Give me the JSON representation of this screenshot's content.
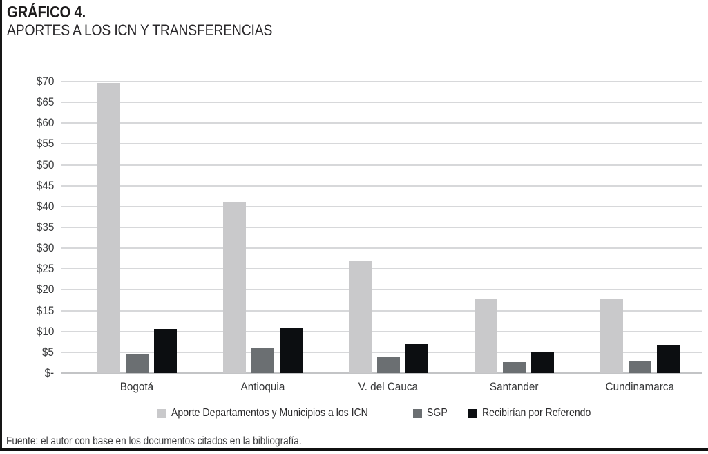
{
  "header": {
    "title": "GRÁFICO 4.",
    "subtitle": "APORTES A LOS ICN Y TRANSFERENCIAS"
  },
  "footer": {
    "text": "Fuente: el autor con base en los documentos citados en la bibliografía."
  },
  "chart_data": {
    "type": "bar",
    "title": "GRÁFICO 4. APORTES A LOS ICN Y TRANSFERENCIAS",
    "categories": [
      "Bogotá",
      "Antioquia",
      "V. del Cauca",
      "Santander",
      "Cundinamarca"
    ],
    "series": [
      {
        "name": "Aporte Departamentos y Municipios a los ICN",
        "color": "#c9c9cb",
        "values": [
          69.7,
          41.0,
          27.0,
          17.9,
          17.8
        ]
      },
      {
        "name": "SGP",
        "color": "#6b6f72",
        "values": [
          4.5,
          6.2,
          3.9,
          2.6,
          2.9
        ]
      },
      {
        "name": "Recibirían por Referendo",
        "color": "#0c0e11",
        "values": [
          10.6,
          10.9,
          7.0,
          5.2,
          6.8
        ]
      }
    ],
    "xlabel": "",
    "ylabel": "",
    "ylim": [
      0,
      70
    ],
    "ytick_step": 5,
    "ytick_labels": [
      "$-",
      "$5",
      "$10",
      "$15",
      "$20",
      "$25",
      "$30",
      "$35",
      "$40",
      "$45",
      "$50",
      "$55",
      "$60",
      "$65",
      "$70"
    ],
    "grid": true,
    "legend_position": "bottom",
    "colors": {
      "gridline": "#d7d8da",
      "axisline": "#c3c4c6",
      "text": "#2c2b2d"
    }
  }
}
